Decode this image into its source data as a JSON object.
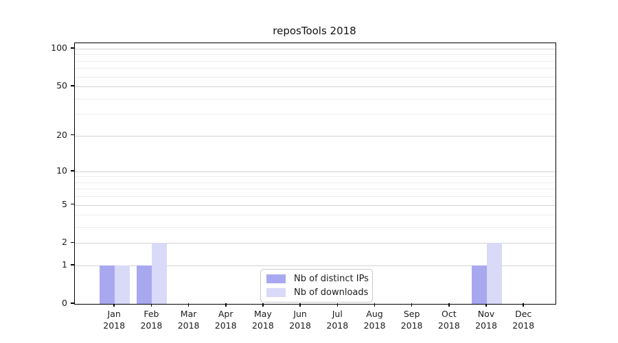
{
  "title": "reposTools 2018",
  "chart_data": {
    "type": "bar",
    "title": "reposTools 2018",
    "categories": [
      "Jan 2018",
      "Feb 2018",
      "Mar 2018",
      "Apr 2018",
      "May 2018",
      "Jun 2018",
      "Jul 2018",
      "Aug 2018",
      "Sep 2018",
      "Oct 2018",
      "Nov 2018",
      "Dec 2018"
    ],
    "x_tick_months": [
      "Jan",
      "Feb",
      "Mar",
      "Apr",
      "May",
      "Jun",
      "Jul",
      "Aug",
      "Sep",
      "Oct",
      "Nov",
      "Dec"
    ],
    "x_tick_year": "2018",
    "series": [
      {
        "name": "Nb of distinct IPs",
        "color": "#a8a8f0",
        "values": [
          1,
          1,
          0,
          0,
          0,
          0,
          0,
          0,
          0,
          0,
          1,
          0
        ]
      },
      {
        "name": "Nb of downloads",
        "color": "#d9d9f8",
        "values": [
          1,
          2,
          0,
          0,
          0,
          0,
          0,
          0,
          0,
          0,
          2,
          0
        ]
      }
    ],
    "xlabel": "",
    "ylabel": "",
    "yscale": "log1p",
    "ylim": [
      0,
      110
    ],
    "y_tick_values": [
      0,
      1,
      2,
      5,
      10,
      20,
      50,
      100
    ],
    "y_tick_labels": [
      "0",
      "1",
      "2",
      "5",
      "10",
      "20",
      "50",
      "100"
    ],
    "y_major_gridlines": [
      1,
      2,
      5,
      10,
      20,
      50,
      100
    ],
    "y_minor_gridlines": [
      3,
      4,
      6,
      7,
      8,
      9,
      30,
      40,
      60,
      70,
      80,
      90
    ],
    "grid": "horizontal",
    "legend_position": "bottom-center"
  },
  "legend": {
    "items": [
      {
        "label": "Nb of distinct IPs",
        "color": "#a8a8f0"
      },
      {
        "label": "Nb of downloads",
        "color": "#d9d9f8"
      }
    ]
  },
  "colors": {
    "axis": "#000000",
    "major_grid": "#d2d2d2",
    "minor_grid": "#ededed",
    "tick_text": "#1a1a1a",
    "legend_border": "#c9c9c9"
  }
}
